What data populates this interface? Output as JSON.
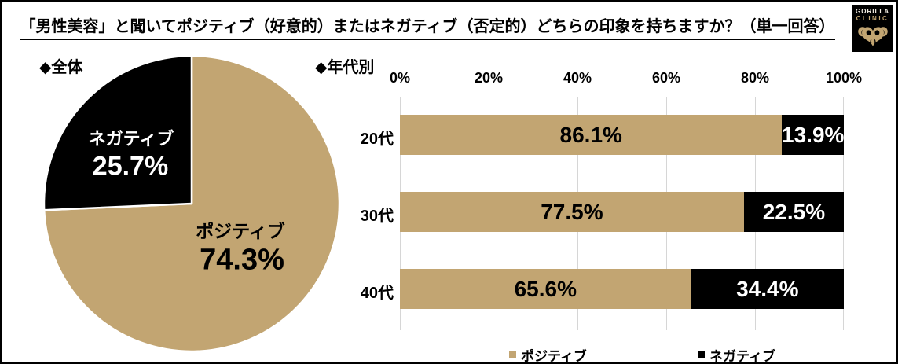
{
  "title": "「男性美容」と聞いてポジティブ（好意的）またはネガティブ（否定的）どちらの印象を持ちますか？（単一回答）",
  "logo": {
    "brand_line1": "GORILLA",
    "brand_line2": "CLINIC"
  },
  "colors": {
    "positive": "#c2a572",
    "negative": "#000000",
    "grid": "#d6d6d6"
  },
  "pie_section": {
    "heading": "◆全体",
    "labels": {
      "negative_name": "ネガティブ",
      "negative_value": "25.7%",
      "positive_name": "ポジティブ",
      "positive_value": "74.3%"
    }
  },
  "bar_section": {
    "heading": "◆年代別",
    "axis_ticks": [
      "0%",
      "20%",
      "40%",
      "60%",
      "80%",
      "100%"
    ],
    "rows": [
      {
        "category": "20代",
        "positive_label": "86.1%",
        "negative_label": "13.9%"
      },
      {
        "category": "30代",
        "positive_label": "77.5%",
        "negative_label": "22.5%"
      },
      {
        "category": "40代",
        "positive_label": "65.6%",
        "negative_label": "34.4%"
      }
    ],
    "legend": [
      {
        "label": "ポジティブ",
        "color": "#c2a572"
      },
      {
        "label": "ネガティブ",
        "color": "#000000"
      }
    ]
  },
  "chart_data": [
    {
      "type": "pie",
      "title": "全体",
      "labels": [
        "ポジティブ",
        "ネガティブ"
      ],
      "values": [
        74.3,
        25.7
      ],
      "colors": [
        "#c2a572",
        "#000000"
      ],
      "start_angle_deg": 0,
      "direction": "clockwise"
    },
    {
      "type": "bar",
      "orientation": "horizontal",
      "stacked": true,
      "title": "年代別",
      "categories": [
        "20代",
        "30代",
        "40代"
      ],
      "series": [
        {
          "name": "ポジティブ",
          "values": [
            86.1,
            77.5,
            65.6
          ],
          "color": "#c2a572"
        },
        {
          "name": "ネガティブ",
          "values": [
            13.9,
            22.5,
            34.4
          ],
          "color": "#000000"
        }
      ],
      "xlim": [
        0,
        100
      ],
      "x_ticks": [
        "0%",
        "20%",
        "40%",
        "60%",
        "80%",
        "100%"
      ],
      "grid": true,
      "legend_position": "bottom"
    }
  ]
}
